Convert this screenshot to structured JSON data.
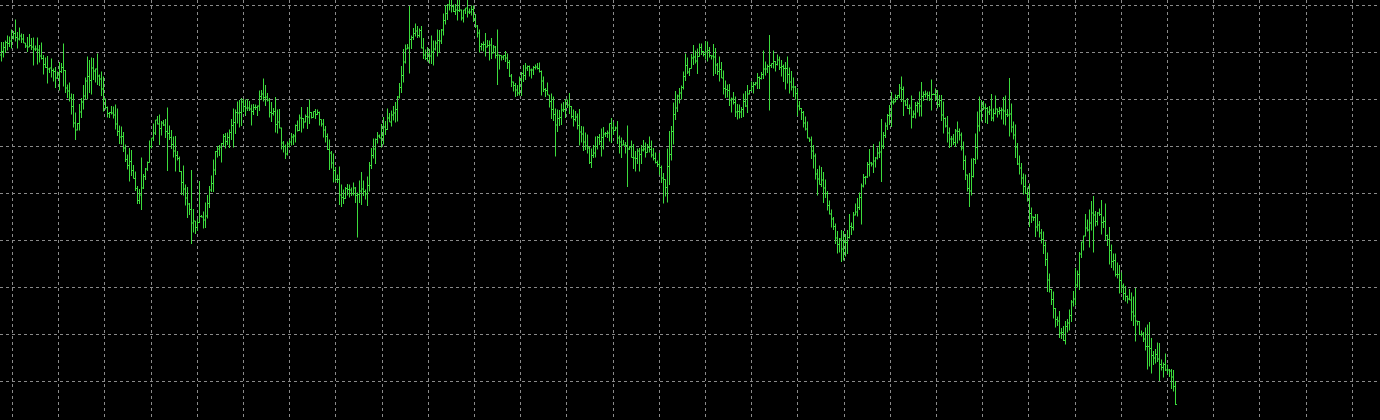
{
  "chart_data": {
    "type": "ohlc",
    "style": "bars",
    "grid": true,
    "legend": "none",
    "title": "",
    "xlabel": "",
    "ylabel": "",
    "colors": {
      "background": "#000000",
      "bars": "#3cdc3c",
      "grid": "#8a8a8a"
    },
    "ylim": [
      0,
      420
    ],
    "anchors": [
      [
        0,
        365
      ],
      [
        10,
        385
      ],
      [
        20,
        380
      ],
      [
        35,
        370
      ],
      [
        45,
        355
      ],
      [
        55,
        345
      ],
      [
        62,
        350
      ],
      [
        75,
        290
      ],
      [
        85,
        335
      ],
      [
        95,
        355
      ],
      [
        105,
        310
      ],
      [
        115,
        300
      ],
      [
        125,
        265
      ],
      [
        132,
        245
      ],
      [
        138,
        215
      ],
      [
        145,
        250
      ],
      [
        155,
        300
      ],
      [
        165,
        290
      ],
      [
        175,
        265
      ],
      [
        185,
        225
      ],
      [
        192,
        195
      ],
      [
        205,
        205
      ],
      [
        215,
        265
      ],
      [
        230,
        290
      ],
      [
        240,
        315
      ],
      [
        250,
        305
      ],
      [
        262,
        325
      ],
      [
        275,
        300
      ],
      [
        285,
        270
      ],
      [
        300,
        300
      ],
      [
        315,
        310
      ],
      [
        325,
        280
      ],
      [
        340,
        225
      ],
      [
        352,
        230
      ],
      [
        365,
        225
      ],
      [
        372,
        270
      ],
      [
        385,
        295
      ],
      [
        395,
        310
      ],
      [
        405,
        370
      ],
      [
        418,
        390
      ],
      [
        425,
        360
      ],
      [
        440,
        385
      ],
      [
        448,
        420
      ],
      [
        458,
        405
      ],
      [
        470,
        410
      ],
      [
        480,
        375
      ],
      [
        492,
        370
      ],
      [
        505,
        365
      ],
      [
        515,
        325
      ],
      [
        522,
        345
      ],
      [
        535,
        355
      ],
      [
        545,
        330
      ],
      [
        555,
        295
      ],
      [
        565,
        315
      ],
      [
        575,
        300
      ],
      [
        590,
        260
      ],
      [
        600,
        285
      ],
      [
        612,
        295
      ],
      [
        620,
        280
      ],
      [
        632,
        265
      ],
      [
        645,
        270
      ],
      [
        655,
        260
      ],
      [
        665,
        230
      ],
      [
        672,
        300
      ],
      [
        685,
        350
      ],
      [
        700,
        370
      ],
      [
        712,
        365
      ],
      [
        725,
        330
      ],
      [
        738,
        305
      ],
      [
        748,
        325
      ],
      [
        760,
        345
      ],
      [
        770,
        355
      ],
      [
        782,
        355
      ],
      [
        795,
        325
      ],
      [
        805,
        295
      ],
      [
        815,
        250
      ],
      [
        825,
        225
      ],
      [
        835,
        185
      ],
      [
        842,
        170
      ],
      [
        855,
        210
      ],
      [
        868,
        255
      ],
      [
        880,
        265
      ],
      [
        890,
        315
      ],
      [
        900,
        330
      ],
      [
        912,
        305
      ],
      [
        925,
        325
      ],
      [
        938,
        320
      ],
      [
        950,
        275
      ],
      [
        958,
        290
      ],
      [
        968,
        220
      ],
      [
        980,
        315
      ],
      [
        992,
        305
      ],
      [
        1002,
        315
      ],
      [
        1010,
        300
      ],
      [
        1018,
        255
      ],
      [
        1030,
        205
      ],
      [
        1042,
        180
      ],
      [
        1052,
        110
      ],
      [
        1062,
        80
      ],
      [
        1072,
        120
      ],
      [
        1082,
        180
      ],
      [
        1092,
        205
      ],
      [
        1102,
        200
      ],
      [
        1110,
        165
      ],
      [
        1120,
        135
      ],
      [
        1130,
        115
      ],
      [
        1140,
        85
      ],
      [
        1150,
        70
      ],
      [
        1160,
        55
      ],
      [
        1170,
        45
      ],
      [
        1175,
        20
      ]
    ]
  }
}
